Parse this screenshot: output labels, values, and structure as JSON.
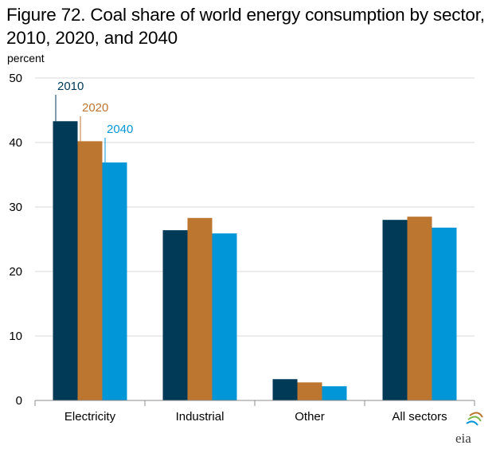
{
  "chart_data": {
    "type": "bar",
    "title": "Figure 72. Coal share of world energy consumption by sector, 2010, 2020, and 2040",
    "ylabel": "percent",
    "xlabel": "",
    "ylim": [
      0,
      50
    ],
    "yticks": [
      "0",
      "10",
      "20",
      "30",
      "40",
      "50"
    ],
    "grid": true,
    "categories": [
      "Electricity",
      "Industrial",
      "Other",
      "All sectors"
    ],
    "series": [
      {
        "name": "2010",
        "color": "#003a57",
        "values": [
          43.3,
          26.4,
          3.3,
          28.0
        ]
      },
      {
        "name": "2020",
        "color": "#bc7630",
        "values": [
          40.2,
          28.3,
          2.8,
          28.5
        ]
      },
      {
        "name": "2040",
        "color": "#0096d7",
        "values": [
          36.9,
          25.9,
          2.2,
          26.8
        ]
      }
    ]
  },
  "logo": {
    "text": "eia",
    "icon": "eia-logo-icon"
  }
}
